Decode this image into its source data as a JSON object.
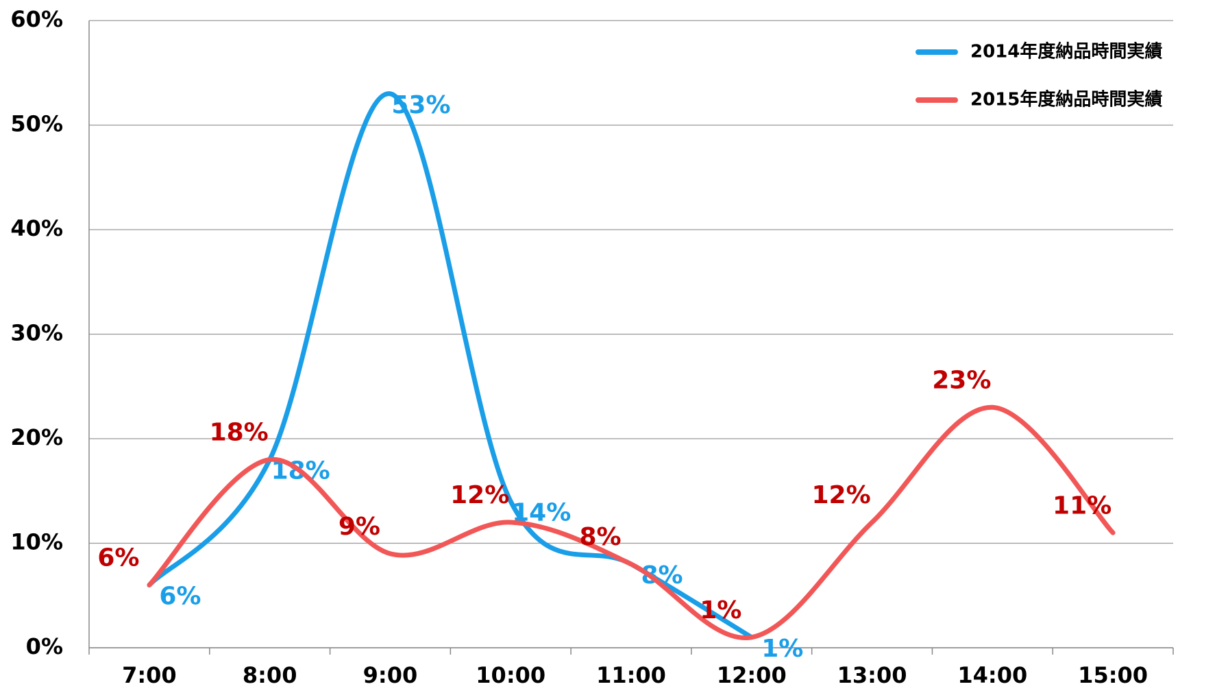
{
  "chart_data": {
    "type": "line",
    "categories": [
      "7:00",
      "8:00",
      "9:00",
      "10:00",
      "11:00",
      "12:00",
      "13:00",
      "14:00",
      "15:00"
    ],
    "series": [
      {
        "name": "2014年度納品時間実績",
        "color": "#1a9ee8",
        "label_color": "#1a9ee8",
        "values": [
          6,
          18,
          53,
          14,
          8,
          1,
          null,
          null,
          null
        ],
        "value_labels": [
          "6%",
          "18%",
          "53%",
          "14%",
          "8%",
          "1%",
          null,
          null,
          null
        ]
      },
      {
        "name": "2015年度納品時間実績",
        "color": "#f25757",
        "label_color": "#c00000",
        "values": [
          6,
          18,
          9,
          12,
          8,
          1,
          12,
          23,
          11
        ],
        "value_labels": [
          "6%",
          "18%",
          "9%",
          "12%",
          "8%",
          "1%",
          "12%",
          "23%",
          "11%"
        ]
      }
    ],
    "ylim": [
      0,
      60
    ],
    "yticks": [
      {
        "value": 0,
        "label": "0%"
      },
      {
        "value": 10,
        "label": "10%"
      },
      {
        "value": 20,
        "label": "20%"
      },
      {
        "value": 30,
        "label": "30%"
      },
      {
        "value": 40,
        "label": "40%"
      },
      {
        "value": 50,
        "label": "50%"
      },
      {
        "value": 60,
        "label": "60%"
      }
    ],
    "grid": true,
    "legend": "top-right"
  }
}
